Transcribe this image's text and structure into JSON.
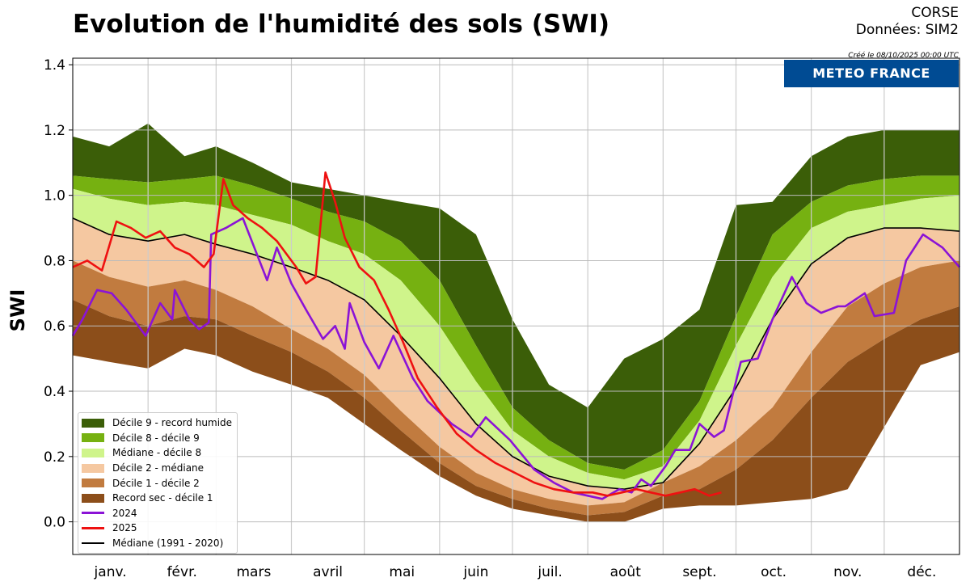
{
  "header": {
    "title": "Evolution de l'humidité des sols (SWI)",
    "region": "CORSE",
    "source": "Données: SIM2",
    "created": "Créé le 08/10/2025 00:00 UTC",
    "logo_text": "METEO FRANCE"
  },
  "chart_data": {
    "type": "area",
    "ylabel": "SWI",
    "xlabel": "",
    "ylim": [
      -0.1,
      1.42
    ],
    "yticks": [
      "0.0",
      "0.2",
      "0.4",
      "0.6",
      "0.8",
      "1.0",
      "1.2",
      "1.4"
    ],
    "ytick_values": [
      0.0,
      0.2,
      0.4,
      0.6,
      0.8,
      1.0,
      1.2,
      1.4
    ],
    "month_labels": [
      "janv.",
      "févr.",
      "mars",
      "avril",
      "mai",
      "juin",
      "juil.",
      "août",
      "sept.",
      "oct.",
      "nov.",
      "déc."
    ],
    "grid": true,
    "legend_position": "lower-left",
    "x_day_of_year": [
      0,
      15,
      31,
      46,
      59,
      74,
      90,
      105,
      120,
      135,
      151,
      166,
      181,
      196,
      212,
      227,
      243,
      258,
      273,
      288,
      304,
      319,
      334,
      349,
      365
    ],
    "bands": {
      "record_sec": [
        0.51,
        0.49,
        0.47,
        0.53,
        0.51,
        0.46,
        0.42,
        0.38,
        0.3,
        0.22,
        0.14,
        0.08,
        0.04,
        0.02,
        0.0,
        0.0,
        0.04,
        0.05,
        0.05,
        0.06,
        0.07,
        0.1,
        0.29,
        0.48,
        0.52
      ],
      "decile_1": [
        0.68,
        0.63,
        0.6,
        0.63,
        0.62,
        0.57,
        0.52,
        0.46,
        0.38,
        0.28,
        0.18,
        0.11,
        0.07,
        0.04,
        0.02,
        0.03,
        0.08,
        0.1,
        0.16,
        0.25,
        0.38,
        0.49,
        0.56,
        0.62,
        0.66
      ],
      "decile_2": [
        0.8,
        0.75,
        0.72,
        0.74,
        0.71,
        0.66,
        0.59,
        0.53,
        0.45,
        0.34,
        0.23,
        0.15,
        0.1,
        0.07,
        0.05,
        0.06,
        0.12,
        0.17,
        0.25,
        0.35,
        0.52,
        0.66,
        0.73,
        0.78,
        0.8
      ],
      "median": [
        0.93,
        0.88,
        0.86,
        0.88,
        0.85,
        0.82,
        0.78,
        0.74,
        0.68,
        0.57,
        0.44,
        0.3,
        0.2,
        0.14,
        0.11,
        0.1,
        0.12,
        0.24,
        0.41,
        0.62,
        0.79,
        0.87,
        0.9,
        0.9,
        0.89
      ],
      "decile_8": [
        1.02,
        0.99,
        0.97,
        0.98,
        0.97,
        0.94,
        0.91,
        0.86,
        0.82,
        0.74,
        0.6,
        0.43,
        0.28,
        0.2,
        0.15,
        0.13,
        0.17,
        0.31,
        0.54,
        0.75,
        0.9,
        0.95,
        0.97,
        0.99,
        1.0
      ],
      "decile_9": [
        1.06,
        1.05,
        1.04,
        1.05,
        1.06,
        1.03,
        0.99,
        0.95,
        0.92,
        0.86,
        0.74,
        0.54,
        0.35,
        0.25,
        0.18,
        0.16,
        0.22,
        0.37,
        0.63,
        0.88,
        0.98,
        1.03,
        1.05,
        1.06,
        1.06
      ],
      "record_humide": [
        1.18,
        1.15,
        1.22,
        1.12,
        1.15,
        1.1,
        1.04,
        1.02,
        1.0,
        0.98,
        0.96,
        0.88,
        0.62,
        0.42,
        0.35,
        0.5,
        0.56,
        0.65,
        0.97,
        0.98,
        1.12,
        1.18,
        1.2,
        1.2,
        1.2
      ]
    },
    "series": [
      {
        "name": "2024",
        "color": "#8b13d6",
        "x": [
          0,
          4,
          10,
          16,
          22,
          30,
          36,
          41,
          42,
          48,
          52,
          56,
          57,
          63,
          70,
          80,
          84,
          90,
          96,
          103,
          108,
          112,
          114,
          120,
          126,
          132,
          140,
          146,
          156,
          164,
          170,
          180,
          190,
          198,
          206,
          212,
          218,
          225,
          230,
          234,
          238,
          244,
          248,
          254,
          258,
          264,
          268,
          275,
          282,
          288,
          296,
          302,
          308,
          315,
          318,
          326,
          330,
          338,
          343,
          350,
          358,
          365
        ],
        "values": [
          0.57,
          0.62,
          0.71,
          0.7,
          0.65,
          0.57,
          0.67,
          0.62,
          0.71,
          0.62,
          0.59,
          0.61,
          0.88,
          0.9,
          0.93,
          0.74,
          0.84,
          0.73,
          0.65,
          0.56,
          0.6,
          0.53,
          0.67,
          0.55,
          0.47,
          0.57,
          0.44,
          0.37,
          0.3,
          0.26,
          0.32,
          0.25,
          0.16,
          0.12,
          0.09,
          0.08,
          0.07,
          0.1,
          0.09,
          0.13,
          0.11,
          0.17,
          0.22,
          0.22,
          0.3,
          0.26,
          0.28,
          0.49,
          0.5,
          0.62,
          0.75,
          0.67,
          0.64,
          0.66,
          0.66,
          0.7,
          0.63,
          0.64,
          0.8,
          0.88,
          0.84,
          0.78
        ]
      },
      {
        "name": "2025",
        "color": "#ee1111",
        "x": [
          0,
          6,
          12,
          18,
          24,
          30,
          36,
          42,
          48,
          54,
          58,
          62,
          66,
          72,
          78,
          84,
          88,
          92,
          96,
          100,
          104,
          108,
          112,
          118,
          124,
          130,
          136,
          142,
          150,
          158,
          166,
          174,
          182,
          190,
          198,
          206,
          214,
          220,
          226,
          232,
          238,
          244,
          250,
          256,
          262,
          267
        ],
        "values": [
          0.78,
          0.8,
          0.77,
          0.92,
          0.9,
          0.87,
          0.89,
          0.84,
          0.82,
          0.78,
          0.82,
          1.05,
          0.97,
          0.93,
          0.9,
          0.86,
          0.82,
          0.78,
          0.73,
          0.75,
          1.07,
          0.98,
          0.87,
          0.78,
          0.74,
          0.65,
          0.55,
          0.44,
          0.35,
          0.27,
          0.22,
          0.18,
          0.15,
          0.12,
          0.1,
          0.09,
          0.09,
          0.08,
          0.09,
          0.1,
          0.09,
          0.08,
          0.09,
          0.1,
          0.08,
          0.09
        ]
      },
      {
        "name": "Médiane (1991 - 2020)",
        "color": "#000000",
        "x": [
          0,
          15,
          31,
          46,
          59,
          74,
          90,
          105,
          120,
          135,
          151,
          166,
          181,
          196,
          212,
          227,
          243,
          258,
          273,
          288,
          304,
          319,
          334,
          349,
          365
        ],
        "values": [
          0.93,
          0.88,
          0.86,
          0.88,
          0.85,
          0.82,
          0.78,
          0.74,
          0.68,
          0.57,
          0.44,
          0.3,
          0.2,
          0.14,
          0.11,
          0.1,
          0.12,
          0.24,
          0.41,
          0.62,
          0.79,
          0.87,
          0.9,
          0.9,
          0.89
        ]
      }
    ],
    "legend": [
      {
        "label": "Décile 9 - record humide",
        "color": "#3b5e08",
        "kind": "band"
      },
      {
        "label": "Décile 8 - décile 9",
        "color": "#76b111",
        "kind": "band"
      },
      {
        "label": "Médiane - décile 8",
        "color": "#cff48b",
        "kind": "band"
      },
      {
        "label": "Décile 2 - médiane",
        "color": "#f5c8a1",
        "kind": "band"
      },
      {
        "label": "Décile 1 - décile 2",
        "color": "#c17b3f",
        "kind": "band"
      },
      {
        "label": "Record sec - décile 1",
        "color": "#8c4e1a",
        "kind": "band"
      },
      {
        "label": "2024",
        "color": "#8b13d6",
        "kind": "line"
      },
      {
        "label": "2025",
        "color": "#ee1111",
        "kind": "line"
      },
      {
        "label": "Médiane (1991 - 2020)",
        "color": "#000000",
        "kind": "thin-line"
      }
    ]
  }
}
